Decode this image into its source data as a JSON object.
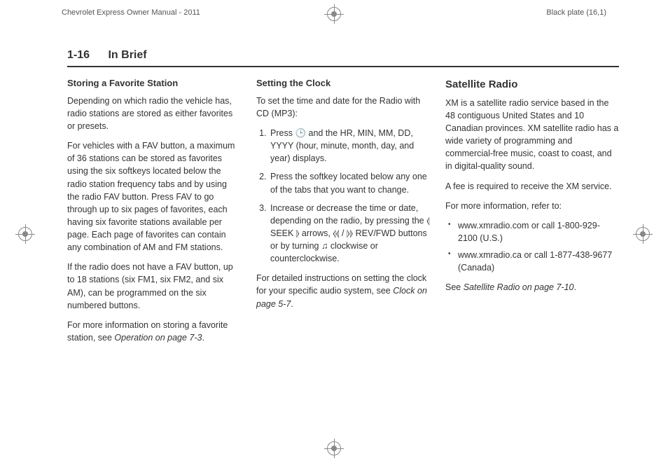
{
  "header": {
    "left": "Chevrolet Express Owner Manual - 2011",
    "right": "Black plate (16,1)"
  },
  "page_head": {
    "number": "1-16",
    "title": "In Brief"
  },
  "col1": {
    "h": "Storing a Favorite Station",
    "p1": "Depending on which radio the vehicle has, radio stations are stored as either favorites or presets.",
    "p2": "For vehicles with a FAV button, a maximum of 36 stations can be stored as favorites using the six softkeys located below the radio station frequency tabs and by using the radio FAV button. Press FAV to go through up to six pages of favorites, each having six favorite stations available per page. Each page of favorites can contain any combination of AM and FM stations.",
    "p3": "If the radio does not have a FAV button, up to 18 stations (six FM1, six FM2, and six AM), can be programmed on the six numbered buttons.",
    "p4a": "For more information on storing a favorite station, see ",
    "p4b": "Operation on page 7-3",
    "p4c": "."
  },
  "col2": {
    "h": "Setting the Clock",
    "p1": "To set the time and date for the Radio with CD (MP3):",
    "li1a": "Press ",
    "li1b": " and the HR, MIN, MM, DD, YYYY (hour, minute, month, day, and year) displays.",
    "li2": "Press the softkey located below any one of the tabs that you want to change.",
    "li3a": "Increase or decrease the time or date, depending on the radio, by pressing the ",
    "li3b": " SEEK ",
    "li3c": " arrows, ",
    "li3d": " REV/FWD buttons or by turning ",
    "li3e": " clockwise or counterclockwise.",
    "p2a": "For detailed instructions on setting the clock for your specific audio system, see ",
    "p2b": "Clock on page 5-7",
    "p2c": "."
  },
  "col3": {
    "h": "Satellite Radio",
    "p1": "XM is a satellite radio service based in the 48 contiguous United States and 10 Canadian provinces. XM satellite radio has a wide variety of programming and commercial-free music, coast to coast, and in digital-quality sound.",
    "p2": "A fee is required to receive the XM service.",
    "p3": "For more information, refer to:",
    "li1": "www.xmradio.com or call 1-800-929-2100 (U.S.)",
    "li2": "www.xmradio.ca or call 1-877-438-9677 (Canada)",
    "p4a": "See ",
    "p4b": "Satellite Radio on page 7-10",
    "p4c": "."
  },
  "symbols": {
    "clock": "🕒",
    "seek_left": "⦉",
    "seek_right": "⦊",
    "rev": "⦉⦉",
    "fwd": "⦊⦊",
    "slash": " / ",
    "note": "♫"
  }
}
